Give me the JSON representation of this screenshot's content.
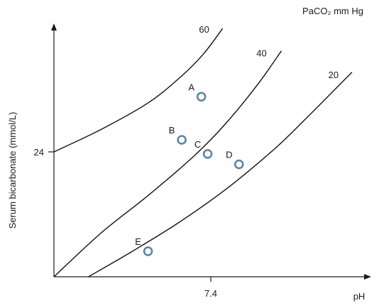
{
  "chart_data": {
    "type": "line",
    "title": "",
    "xlabel": "pH",
    "ylabel": "Serum bicarbonate (mmol/L)",
    "legend_title": "PaCO₂ mm Hg",
    "x_ticks": [
      {
        "value": 7.4,
        "label": "7.4"
      }
    ],
    "y_ticks": [
      {
        "value": 24,
        "label": "24"
      }
    ],
    "xlim": [
      7.2,
      7.6
    ],
    "ylim": [
      0,
      48
    ],
    "grid": false,
    "series": [
      {
        "name": "60",
        "x": [
          7.2,
          7.26,
          7.32,
          7.36,
          7.39,
          7.415
        ],
        "y": [
          24,
          28.3,
          33.4,
          38.2,
          42.7,
          47.7
        ]
      },
      {
        "name": "40",
        "x": [
          7.2,
          7.26,
          7.32,
          7.38,
          7.42,
          7.46,
          7.49
        ],
        "y": [
          0,
          8.4,
          15.6,
          23.4,
          29.6,
          37.0,
          43.4
        ]
      },
      {
        "name": "20",
        "x": [
          7.244,
          7.3,
          7.36,
          7.42,
          7.48,
          7.52,
          7.58
        ],
        "y": [
          0,
          4.9,
          10.5,
          16.9,
          24.4,
          30.2,
          39.3
        ]
      }
    ],
    "points": [
      {
        "label": "A",
        "x": 7.388,
        "y": 34.6
      },
      {
        "label": "B",
        "x": 7.363,
        "y": 26.3
      },
      {
        "label": "C",
        "x": 7.396,
        "y": 23.6
      },
      {
        "label": "D",
        "x": 7.436,
        "y": 21.6
      },
      {
        "label": "E",
        "x": 7.32,
        "y": 4.9
      }
    ]
  }
}
